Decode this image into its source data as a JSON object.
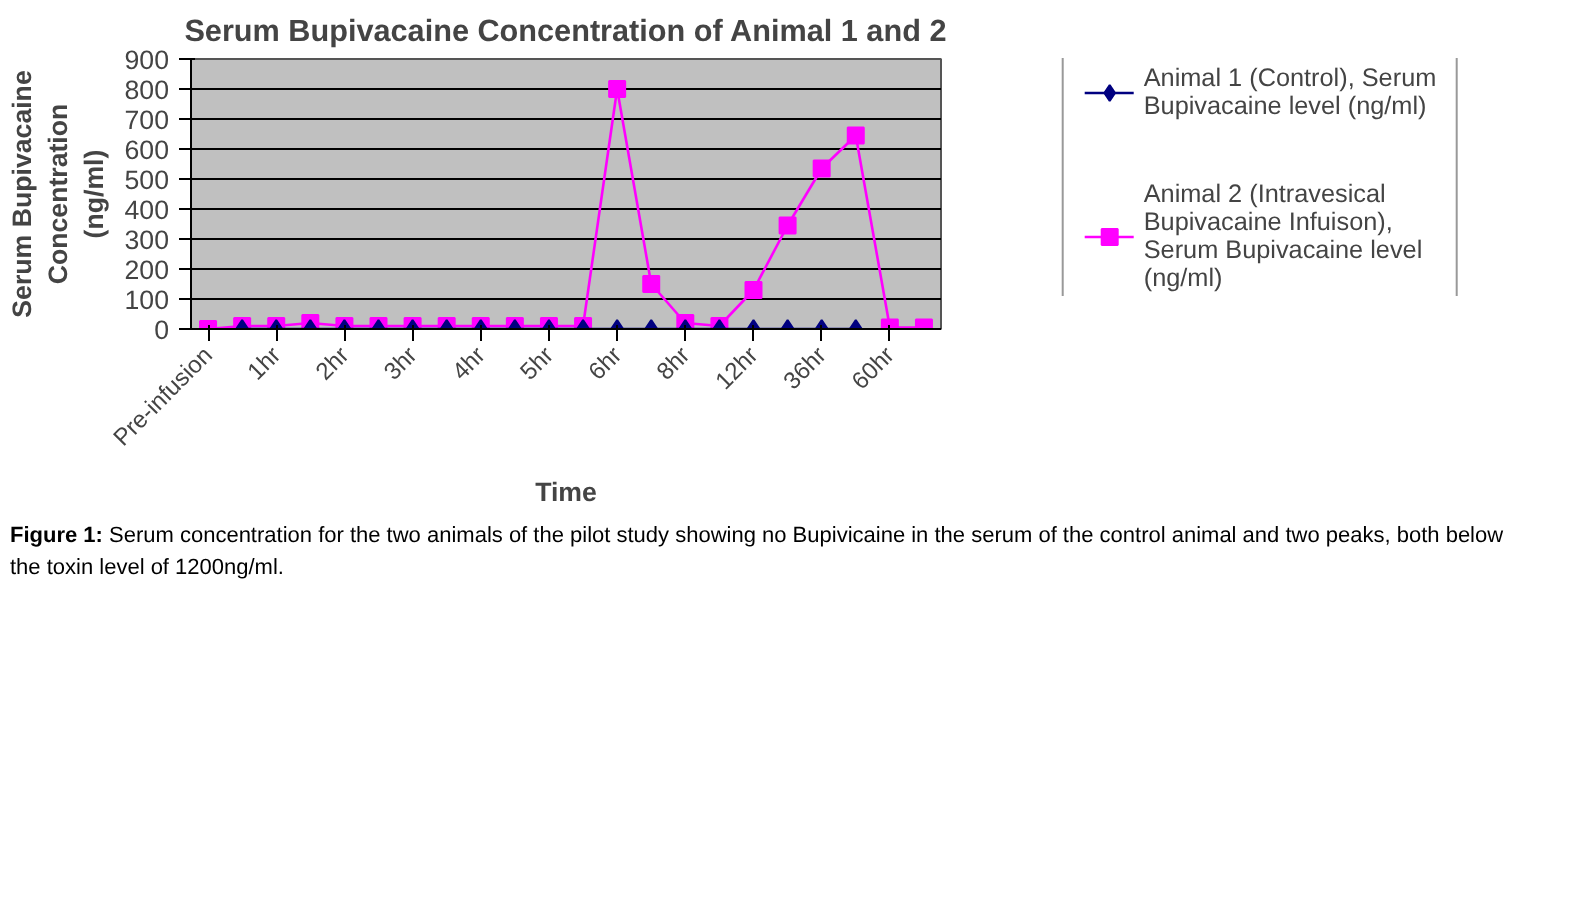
{
  "chart_data": {
    "type": "line",
    "title": "Serum Bupivacaine Concentration of Animal 1 and 2",
    "xlabel": "Time",
    "ylabel": "Serum Bupivacaine Concentration (ng/ml)",
    "categories": [
      "Pre-infusion",
      null,
      "1hr",
      null,
      "2hr",
      null,
      "3hr",
      null,
      "4hr",
      null,
      "5hr",
      null,
      "6hr",
      null,
      "8hr",
      null,
      "12hr",
      null,
      "36hr",
      null,
      "60hr",
      null
    ],
    "series": [
      {
        "name": "Animal 1 (Control), Serum Bupivacaine level (ng/ml)",
        "color": "#000080",
        "marker": "diamond",
        "values": [
          null,
          0,
          0,
          0,
          0,
          0,
          0,
          0,
          0,
          0,
          0,
          0,
          0,
          0,
          0,
          0,
          0,
          0,
          0,
          0,
          null,
          null
        ]
      },
      {
        "name": "Animal 2 (Intravesical Bupivacaine Infuison), Serum Bupivacaine level (ng/ml)",
        "color": "#ff00ff",
        "marker": "square",
        "values": [
          0,
          10,
          10,
          20,
          10,
          10,
          10,
          10,
          10,
          10,
          10,
          10,
          800,
          150,
          20,
          10,
          130,
          345,
          535,
          645,
          5,
          5
        ]
      }
    ],
    "ylim": [
      0,
      900
    ],
    "yticks": [
      0,
      100,
      200,
      300,
      400,
      500,
      600,
      700,
      800,
      900
    ],
    "grid": "y",
    "legend": "right",
    "line_style": "solid",
    "annotations": [
      "Figure 1: Serum concentration for the two animals of the pilot study showing no Bupivicaine in the serum of the control animal and two peaks, both below the toxin level of 1200ng/ml."
    ]
  }
}
